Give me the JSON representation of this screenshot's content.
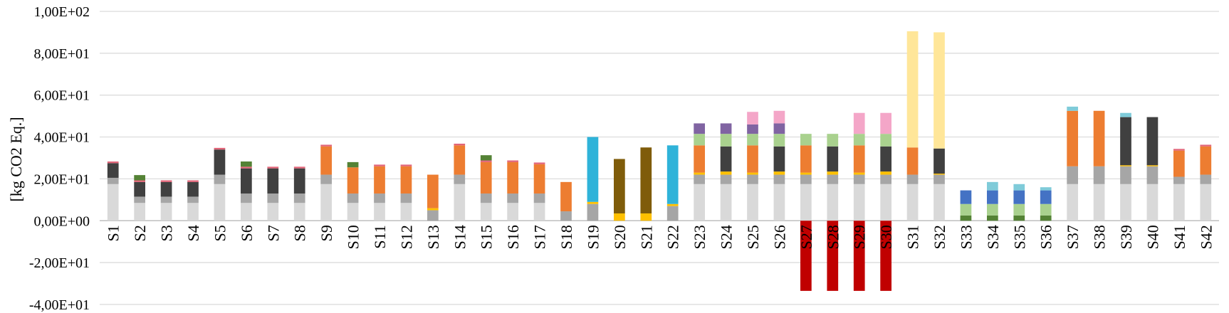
{
  "chart_data": {
    "type": "bar",
    "stacked": true,
    "title": "",
    "xlabel": "",
    "ylabel": "[kg CO2 Eq.]",
    "ylim": [
      -40,
      100
    ],
    "yticks": [
      100,
      80,
      60,
      40,
      20,
      0,
      -20,
      -40
    ],
    "ytick_labels": [
      "1,00E+02",
      "8,00E+01",
      "6,00E+01",
      "4,00E+01",
      "2,00E+01",
      "0,00E+00",
      "-2,00E+01",
      "-4,00E+01"
    ],
    "grid": true,
    "legend": "none",
    "categories": [
      "S1",
      "S2",
      "S3",
      "S4",
      "S5",
      "S6",
      "S7",
      "S8",
      "S9",
      "S10",
      "S11",
      "S12",
      "S13",
      "S14",
      "S15",
      "S16",
      "S17",
      "S18",
      "S19",
      "S20",
      "S21",
      "S22",
      "S23",
      "S24",
      "S25",
      "S26",
      "S27",
      "S28",
      "S29",
      "S30",
      "S31",
      "S32",
      "S33",
      "S34",
      "S35",
      "S36",
      "S37",
      "S38",
      "S39",
      "S40",
      "S41",
      "S42"
    ],
    "series": [
      {
        "color": "#d9d9d9",
        "values": [
          17.5,
          8.5,
          8.5,
          8.5,
          17.5,
          8.5,
          8.5,
          8.5,
          17.5,
          8.5,
          8.5,
          8.5,
          0,
          17.5,
          8.5,
          8.5,
          8.5,
          0,
          0,
          0,
          0,
          0,
          17.5,
          17.5,
          17.5,
          17.5,
          17.5,
          17.5,
          17.5,
          17.5,
          17.5,
          17.5,
          0,
          0,
          0,
          0,
          17.5,
          17.5,
          17.5,
          17.5,
          17.5,
          17.5
        ]
      },
      {
        "color": "#a6a6a6",
        "values": [
          3,
          3,
          3,
          3,
          4.5,
          4.5,
          4.5,
          4.5,
          4.5,
          4.5,
          4.5,
          4.5,
          5,
          4.5,
          4.5,
          4.5,
          4.5,
          4.5,
          8,
          0,
          0,
          7,
          4.5,
          4.5,
          4.5,
          4.5,
          4.5,
          4.5,
          4.5,
          4.5,
          4.5,
          4.5,
          0,
          0,
          0,
          0,
          8.5,
          8.5,
          8.5,
          8.5,
          3.5,
          4.5
        ]
      },
      {
        "color": "#ffc000",
        "values": [
          0,
          0,
          0,
          0,
          0,
          0,
          0,
          0,
          0,
          0,
          0,
          0,
          1,
          0,
          0,
          0,
          0,
          0,
          1,
          3.5,
          3.5,
          1,
          1,
          1.5,
          1,
          1.5,
          1,
          1.5,
          1,
          1.5,
          0,
          0.5,
          0,
          0,
          0,
          0,
          0,
          0,
          0.5,
          0.5,
          0,
          0
        ]
      },
      {
        "color": "#404040",
        "values": [
          7,
          7,
          7,
          7,
          12,
          12,
          12,
          12,
          0,
          0,
          0,
          0,
          0,
          0,
          0,
          0,
          0,
          0,
          0,
          0,
          0,
          0,
          0,
          12,
          0,
          12,
          0,
          12,
          0,
          12,
          0,
          12,
          0,
          0,
          0,
          0,
          0,
          0,
          23,
          23,
          0,
          0
        ]
      },
      {
        "color": "#ed7d31",
        "values": [
          0,
          0,
          0,
          0,
          0,
          0,
          0,
          0,
          13.5,
          12.5,
          13,
          13,
          16,
          14,
          15,
          15,
          14,
          14,
          0,
          0,
          0,
          0,
          13,
          0,
          13,
          0,
          13,
          0,
          13,
          0,
          13,
          0,
          0,
          0,
          0,
          0,
          26.5,
          26.5,
          0,
          0,
          12.5,
          13.5
        ]
      },
      {
        "color": "#e26478",
        "values": [
          0.8,
          0.8,
          0.8,
          0.8,
          0.8,
          0.8,
          0.8,
          0.8,
          0.8,
          0,
          0.8,
          0.8,
          0,
          0.8,
          0.8,
          0.8,
          0.8,
          0,
          0,
          0,
          0,
          0,
          0,
          0,
          0,
          0,
          0,
          0,
          0,
          0,
          0,
          0,
          0,
          0,
          0,
          0,
          0,
          0,
          0,
          0,
          0.8,
          0.8
        ]
      },
      {
        "color": "#548235",
        "values": [
          0,
          2.5,
          0,
          0,
          0,
          2.5,
          0,
          0,
          0,
          2.5,
          0,
          0,
          0,
          0,
          2.5,
          0,
          0,
          0,
          0,
          0,
          0,
          0,
          0,
          0,
          0,
          0,
          0,
          0,
          0,
          0,
          0,
          0,
          2.5,
          2.5,
          2.5,
          2.5,
          0,
          0,
          0,
          0,
          0,
          0
        ]
      },
      {
        "color": "#a9d18e",
        "values": [
          0,
          0,
          0,
          0,
          0,
          0,
          0,
          0,
          0,
          0,
          0,
          0,
          0,
          0,
          0,
          0,
          0,
          0,
          0,
          0,
          0,
          0,
          5.5,
          6,
          5.5,
          6,
          5.5,
          6,
          5.5,
          6,
          0,
          0,
          5.5,
          5.5,
          5.5,
          5.5,
          0,
          0,
          0,
          0,
          0,
          0
        ]
      },
      {
        "color": "#8064a2",
        "values": [
          0,
          0,
          0,
          0,
          0,
          0,
          0,
          0,
          0,
          0,
          0,
          0,
          0,
          0,
          0,
          0,
          0,
          0,
          0,
          0,
          0,
          0,
          5,
          5,
          4.5,
          5,
          0,
          0,
          0,
          0,
          0,
          0,
          0,
          0,
          0,
          0,
          0,
          0,
          0,
          0,
          0,
          0
        ]
      },
      {
        "color": "#f4a6c8",
        "values": [
          0,
          0,
          0,
          0,
          0,
          0,
          0,
          0,
          0,
          0,
          0,
          0,
          0,
          0,
          0,
          0,
          0,
          0,
          0,
          0,
          0,
          0,
          0,
          0,
          6,
          6,
          0,
          0,
          10,
          10,
          0,
          0,
          0,
          0,
          0,
          0,
          0,
          0,
          0,
          0,
          0,
          0
        ]
      },
      {
        "color": "#2fb3d9",
        "values": [
          0,
          0,
          0,
          0,
          0,
          0,
          0,
          0,
          0,
          0,
          0,
          0,
          0,
          0,
          0,
          0,
          0,
          0,
          31,
          0,
          0,
          28,
          0,
          0,
          0,
          0,
          0,
          0,
          0,
          0,
          0,
          0,
          0,
          0,
          0,
          0,
          0,
          0,
          0,
          0,
          0,
          0
        ]
      },
      {
        "color": "#7f5c0a",
        "values": [
          0,
          0,
          0,
          0,
          0,
          0,
          0,
          0,
          0,
          0,
          0,
          0,
          0,
          0,
          0,
          0,
          0,
          0,
          0,
          26,
          31.5,
          0,
          0,
          0,
          0,
          0,
          0,
          0,
          0,
          0,
          0,
          0,
          0,
          0,
          0,
          0,
          0,
          0,
          0,
          0,
          0,
          0
        ]
      },
      {
        "color": "#ffe699",
        "values": [
          0,
          0,
          0,
          0,
          0,
          0,
          0,
          0,
          0,
          0,
          0,
          0,
          0,
          0,
          0,
          0,
          0,
          0,
          0,
          0,
          0,
          0,
          0,
          0,
          0,
          0,
          0,
          0,
          0,
          0,
          55.5,
          55.5,
          0,
          0,
          0,
          0,
          0,
          0,
          0,
          0,
          0,
          0
        ]
      },
      {
        "color": "#4472c4",
        "values": [
          0,
          0,
          0,
          0,
          0,
          0,
          0,
          0,
          0,
          0,
          0,
          0,
          0,
          0,
          0,
          0,
          0,
          0,
          0,
          0,
          0,
          0,
          0,
          0,
          0,
          0,
          0,
          0,
          0,
          0,
          0,
          0,
          6.5,
          6.5,
          6.5,
          6.5,
          0,
          0,
          0,
          0,
          0,
          0
        ]
      },
      {
        "color": "#7fcbd9",
        "values": [
          0,
          0,
          0,
          0,
          0,
          0,
          0,
          0,
          0,
          0,
          0,
          0,
          0,
          0,
          0,
          0,
          0,
          0,
          0,
          0,
          0,
          0,
          0,
          0,
          0,
          0,
          0,
          0,
          0,
          0,
          0,
          0,
          0,
          4,
          3,
          1.5,
          2,
          0,
          2,
          0,
          0,
          0
        ]
      },
      {
        "color": "#c00000",
        "values": [
          0,
          0,
          0,
          0,
          0,
          0,
          0,
          0,
          0,
          0,
          0,
          0,
          0,
          0,
          0,
          0,
          0,
          0,
          0,
          0,
          0,
          0,
          0,
          0,
          0,
          0,
          -33.5,
          -33.5,
          -33.5,
          -33.5,
          0,
          0,
          0,
          0,
          0,
          0,
          0,
          0,
          0,
          0,
          0,
          0
        ]
      }
    ]
  }
}
